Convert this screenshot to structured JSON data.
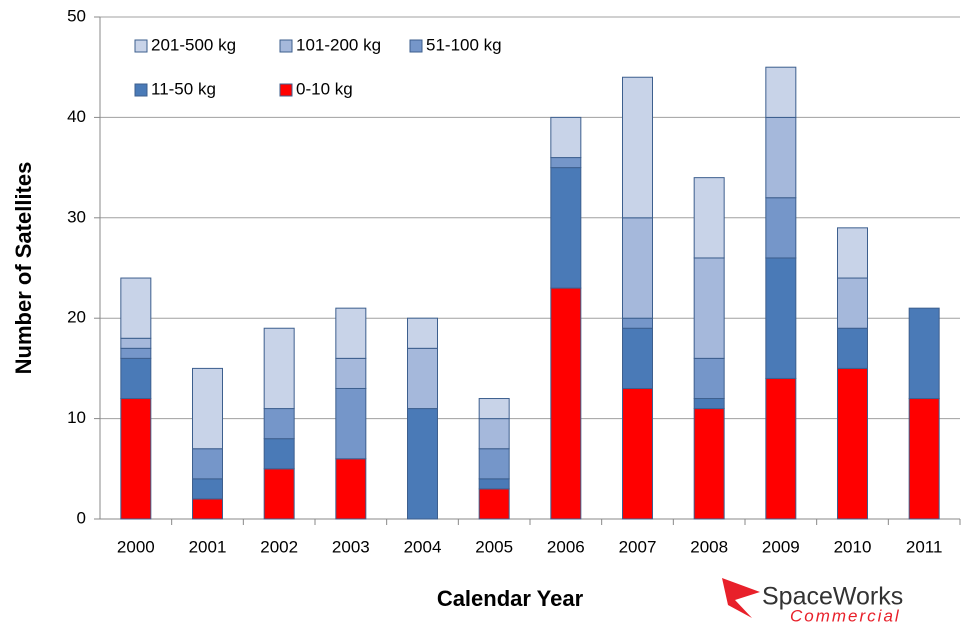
{
  "chart_data": {
    "type": "stacked_bar",
    "x_label": "Calendar Year",
    "y_label": "Number of Satellites",
    "categories": [
      "2000",
      "2001",
      "2002",
      "2003",
      "2004",
      "2005",
      "2006",
      "2007",
      "2008",
      "2009",
      "2010",
      "2011"
    ],
    "series": [
      {
        "name": "0-10 kg",
        "color": "#ff0000",
        "values": [
          12,
          2,
          5,
          6,
          0,
          3,
          23,
          13,
          11,
          14,
          15,
          12
        ]
      },
      {
        "name": "11-50 kg",
        "color": "#4a7ab7",
        "values": [
          4,
          2,
          3,
          0,
          11,
          1,
          12,
          6,
          1,
          12,
          4,
          9
        ]
      },
      {
        "name": "51-100 kg",
        "color": "#7596c9",
        "values": [
          1,
          3,
          3,
          7,
          0,
          3,
          1,
          1,
          4,
          6,
          0,
          0
        ]
      },
      {
        "name": "101-200 kg",
        "color": "#a5b8db",
        "values": [
          1,
          0,
          0,
          3,
          6,
          3,
          0,
          10,
          10,
          8,
          5,
          0
        ]
      },
      {
        "name": "201-500 kg",
        "color": "#c8d3e8",
        "values": [
          6,
          8,
          8,
          5,
          3,
          2,
          4,
          14,
          8,
          5,
          5,
          0
        ]
      }
    ],
    "ylim": [
      0,
      50
    ],
    "yticks": [
      0,
      10,
      20,
      30,
      40,
      50
    ],
    "grid": true
  },
  "logo": {
    "name": "SpaceWorks",
    "tagline": "Commercial"
  }
}
